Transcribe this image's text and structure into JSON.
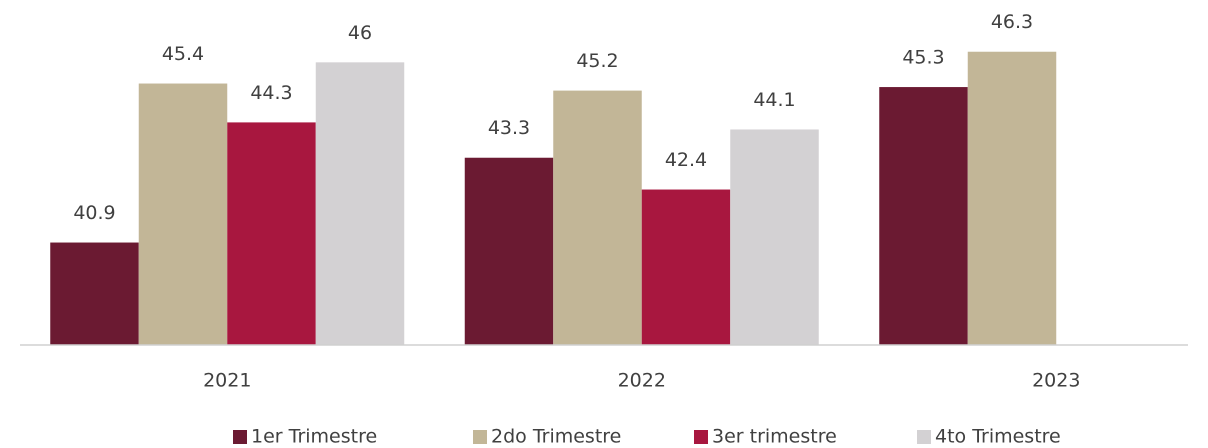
{
  "chart_data": {
    "type": "bar",
    "categories": [
      "2021",
      "2022",
      "2023"
    ],
    "series": [
      {
        "name": "1er Trimestre",
        "color": "#6b1a32",
        "values": [
          40.9,
          43.3,
          45.3
        ]
      },
      {
        "name": "2do Trimestre",
        "color": "#c2b697",
        "values": [
          45.4,
          45.2,
          46.3
        ]
      },
      {
        "name": "3er trimestre",
        "color": "#a8173f",
        "values": [
          44.3,
          42.4,
          null
        ]
      },
      {
        "name": "4to Trimestre",
        "color": "#d3d1d3",
        "values": [
          46,
          44.1,
          null
        ]
      }
    ],
    "ylim": [
      38,
      47
    ],
    "legend": "bottom"
  }
}
